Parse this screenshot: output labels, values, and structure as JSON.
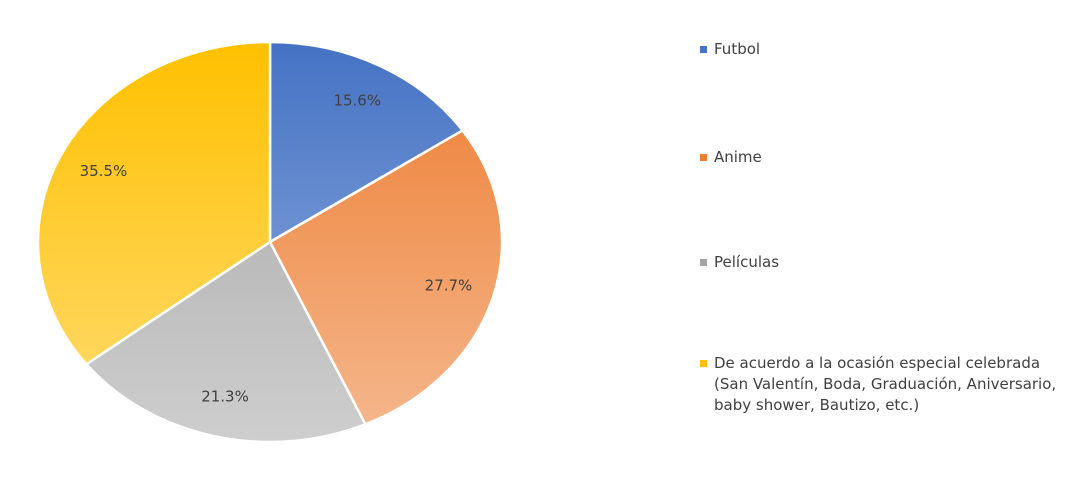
{
  "chart_data": {
    "type": "pie",
    "categories": [
      "Futbol",
      "Anime",
      "Películas",
      "De acuerdo a la ocasión especial celebrada (San Valentín, Boda, Graduación, Aniversario, baby shower, Bautizo, etc.)"
    ],
    "values": [
      15.6,
      27.7,
      21.3,
      35.5
    ],
    "value_labels": [
      "15.6%",
      "27.7%",
      "21.3%",
      "35.5%"
    ],
    "colors": [
      "#4472c4",
      "#ed7d31",
      "#a5a5a5",
      "#ffc000"
    ],
    "legend": "right"
  }
}
